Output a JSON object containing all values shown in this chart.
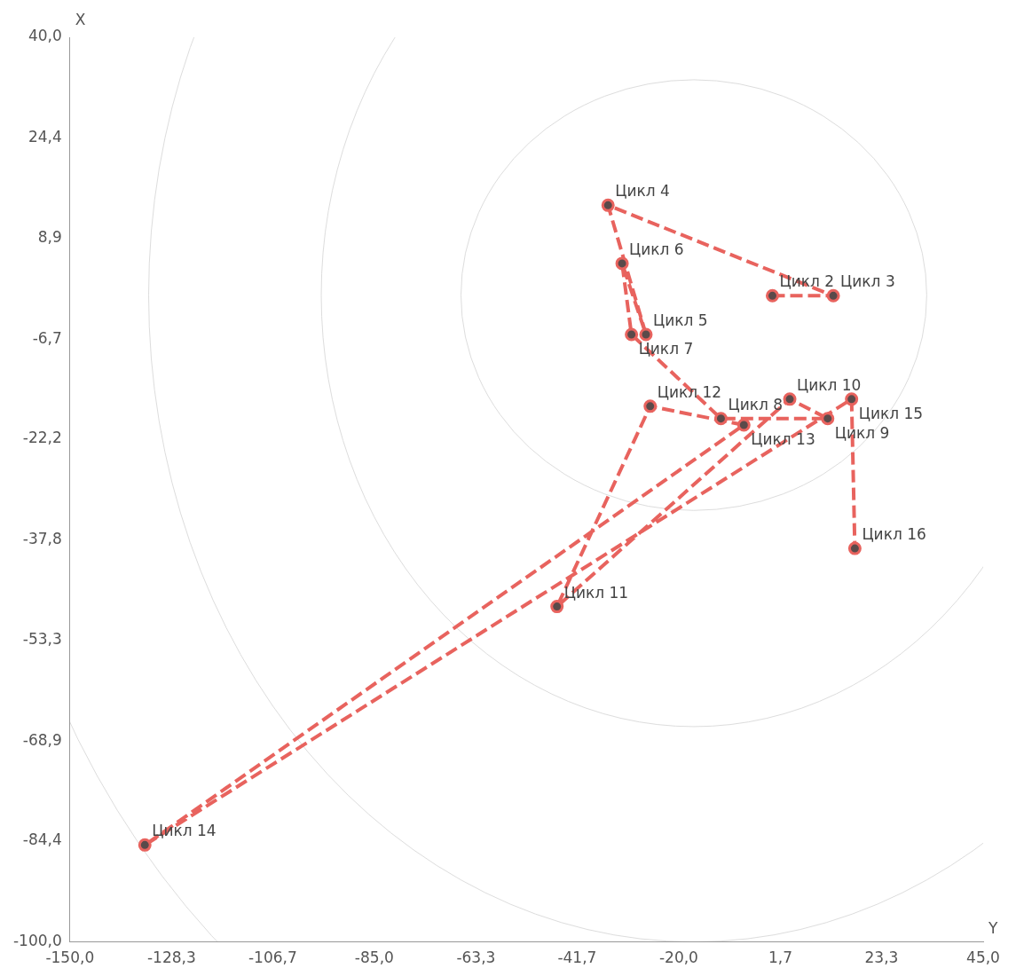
{
  "chart_data": {
    "type": "line",
    "xlabel": "Y",
    "ylabel": "X",
    "x": [
      0,
      13,
      -35.1,
      -27,
      -32.1,
      -30.1,
      -11,
      11.8,
      3.7,
      -46,
      -26.1,
      -6.1,
      -134,
      16.9,
      17.6
    ],
    "series": [
      {
        "color": "#e8635e",
        "values": [
          0,
          0,
          14,
          -6,
          5,
          -6,
          -19,
          -19,
          -16,
          -48.1,
          -17.1,
          -20,
          -85,
          -16,
          -39.1
        ]
      }
    ],
    "marker": "circle",
    "line_style": "dashed",
    "grid": false,
    "legend": false,
    "xlim": [
      -150,
      45
    ],
    "xticks": [
      {
        "value": -150,
        "label": "-150,0"
      },
      {
        "value": -128.3,
        "label": "-128,3"
      },
      {
        "value": -106.7,
        "label": "-106,7"
      },
      {
        "value": -85,
        "label": "-85,0"
      },
      {
        "value": -63.3,
        "label": "-63,3"
      },
      {
        "value": -41.7,
        "label": "-41,7"
      },
      {
        "value": -20,
        "label": "-20,0"
      },
      {
        "value": 1.7,
        "label": "1,7"
      },
      {
        "value": 23.3,
        "label": "23,3"
      },
      {
        "value": 45,
        "label": "45,0"
      }
    ],
    "ylim": [
      -100,
      40
    ],
    "yticks": [
      {
        "value": -100,
        "label": "-100,0"
      },
      {
        "value": -84.4,
        "label": "-84,4"
      },
      {
        "value": -68.9,
        "label": "-68,9"
      },
      {
        "value": -53.3,
        "label": "-53,3"
      },
      {
        "value": -37.8,
        "label": "-37,8"
      },
      {
        "value": -22.2,
        "label": "-22,2"
      },
      {
        "value": -6.7,
        "label": "-6,7"
      },
      {
        "value": 8.9,
        "label": "8,9"
      },
      {
        "value": 24.4,
        "label": "24,4"
      },
      {
        "value": 40,
        "label": "40,0"
      }
    ],
    "annotations": [
      {
        "text": "Цикл 2",
        "x": 0,
        "y": 0
      },
      {
        "text": "Цикл 3",
        "x": 13,
        "y": 0
      },
      {
        "text": "Цикл 4",
        "x": -35.1,
        "y": 14
      },
      {
        "text": "Цикл 5",
        "x": -27,
        "y": -6
      },
      {
        "text": "Цикл 6",
        "x": -32.1,
        "y": 5
      },
      {
        "text": "Цикл 7",
        "x": -30.1,
        "y": -6
      },
      {
        "text": "Цикл 8",
        "x": -11,
        "y": -19
      },
      {
        "text": "Цикл 9",
        "x": 11.8,
        "y": -19
      },
      {
        "text": "Цикл 10",
        "x": 3.7,
        "y": -16
      },
      {
        "text": "Цикл 11",
        "x": -46,
        "y": -48.1
      },
      {
        "text": "Цикл 12",
        "x": -26.1,
        "y": -17.1
      },
      {
        "text": "Цикл 13",
        "x": -6.1,
        "y": -20
      },
      {
        "text": "Цикл 14",
        "x": -134,
        "y": -85
      },
      {
        "text": "Цикл 15",
        "x": 16.9,
        "y": -16
      },
      {
        "text": "Цикл 16",
        "x": 17.6,
        "y": -39.1
      }
    ]
  }
}
